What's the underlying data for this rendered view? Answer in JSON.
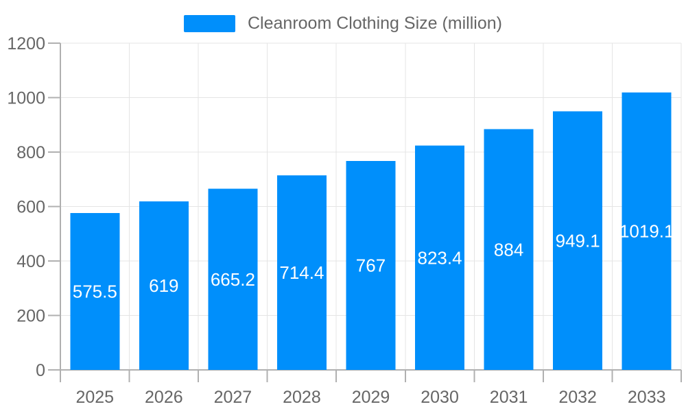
{
  "chart_data": {
    "type": "bar",
    "title": "Cleanroom Clothing Size (million)",
    "categories": [
      "2025",
      "2026",
      "2027",
      "2028",
      "2029",
      "2030",
      "2031",
      "2032",
      "2033"
    ],
    "series": [
      {
        "name": "Cleanroom Clothing Size (million)",
        "values": [
          575.5,
          619,
          665.2,
          714.4,
          767,
          823.4,
          884,
          949.1,
          1019.1
        ]
      }
    ],
    "value_labels": [
      "575.5",
      "619",
      "665.2",
      "714.4",
      "767",
      "823.4",
      "884",
      "949.1",
      "1019.1"
    ],
    "xlabel": "",
    "ylabel": "",
    "ylim": [
      0,
      1200
    ],
    "yticks": [
      0,
      200,
      400,
      600,
      800,
      1000,
      1200
    ],
    "grid": true,
    "legend_position": "top",
    "colors": {
      "bar": "#008FFB",
      "value_label": "#FFFFFF",
      "axis_text": "#666666",
      "legend_text": "#666666",
      "grid_line": "#E4E4E4",
      "axis_line": "#B0B0B0",
      "background": "#FFFFFF"
    }
  }
}
